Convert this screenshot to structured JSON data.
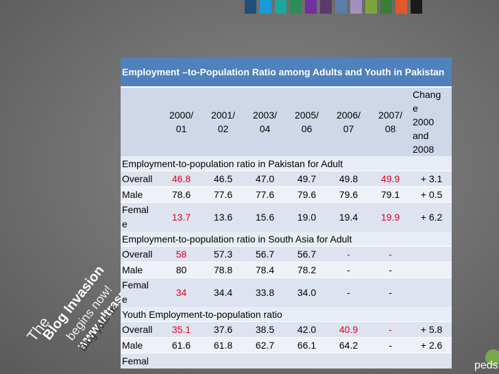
{
  "colors": {
    "swatches": [
      "#1f4e79",
      "#1a9ad6",
      "#1aa7a0",
      "#2e8b57",
      "#7030a0",
      "#5a3a6a",
      "#5b7fa8",
      "#a58fbf",
      "#7aa63c",
      "#3a7d3a",
      "#e0592a",
      "#1a1a1a"
    ],
    "header_blue": "#4f81bd",
    "highlight_red": "#e3001b"
  },
  "watermark": {
    "lines": [
      "The",
      "Blog Invasion",
      "begins now!",
      "www.ultraspectra.c",
      "Blog your m"
    ]
  },
  "logo": {
    "text": "peds"
  },
  "table": {
    "title": "Employment –to-Population Ratio among Adults and Youth in Pakistan",
    "headers": [
      "",
      "2000/ 01",
      "2001/ 02",
      "2003/ 04",
      "2005/ 06",
      "2006/ 07",
      "2007/ 08",
      "Chang e 2000 and 2008"
    ],
    "sections": [
      {
        "title": "Employment-to-population ratio in Pakistan for Adult",
        "rows": [
          {
            "label": "Overall",
            "values": [
              "46.8",
              "46.5",
              "47.0",
              "49.7",
              "49.8",
              "49.9"
            ],
            "change": "+ 3.1",
            "red": [
              0,
              5
            ]
          },
          {
            "label": "Male",
            "values": [
              "78.6",
              "77.6",
              "77.6",
              "79.6",
              "79.6",
              "79.1"
            ],
            "change": "+ 0.5",
            "red": []
          },
          {
            "label": "Femal e",
            "values": [
              "13.7",
              "13.6",
              "15.6",
              "19.0",
              "19.4",
              "19.9"
            ],
            "change": "+ 6.2",
            "red": [
              0,
              5
            ]
          }
        ]
      },
      {
        "title": "Employment-to-population ratio  in South Asia for Adult",
        "rows": [
          {
            "label": "Overall",
            "values": [
              "58",
              "57.3",
              "56.7",
              "56.7",
              "-",
              "-"
            ],
            "change": "",
            "red": [
              0,
              4,
              5
            ]
          },
          {
            "label": "Male",
            "values": [
              "80",
              "78.8",
              "78.4",
              "78.2",
              "-",
              "-"
            ],
            "change": "",
            "red": []
          },
          {
            "label": "Femal e",
            "values": [
              "34",
              "34.4",
              "33.8",
              "34.0",
              "-",
              "-"
            ],
            "change": "",
            "red": [
              0
            ]
          }
        ]
      },
      {
        "title": "Youth Employment-to-population ratio",
        "rows": [
          {
            "label": "Overall",
            "values": [
              "35.1",
              "37.6",
              "38.5",
              "42.0",
              "40.9",
              "-"
            ],
            "change": "+ 5.8",
            "red": [
              0,
              4,
              5
            ]
          },
          {
            "label": "Male",
            "values": [
              "61.6",
              "61.8",
              "62.7",
              "66.1",
              "64.2",
              "-"
            ],
            "change": "+ 2.6",
            "red": []
          },
          {
            "label": "Femal",
            "values": [
              "",
              "",
              "",
              "",
              "",
              ""
            ],
            "change": "",
            "red": []
          }
        ]
      }
    ]
  }
}
